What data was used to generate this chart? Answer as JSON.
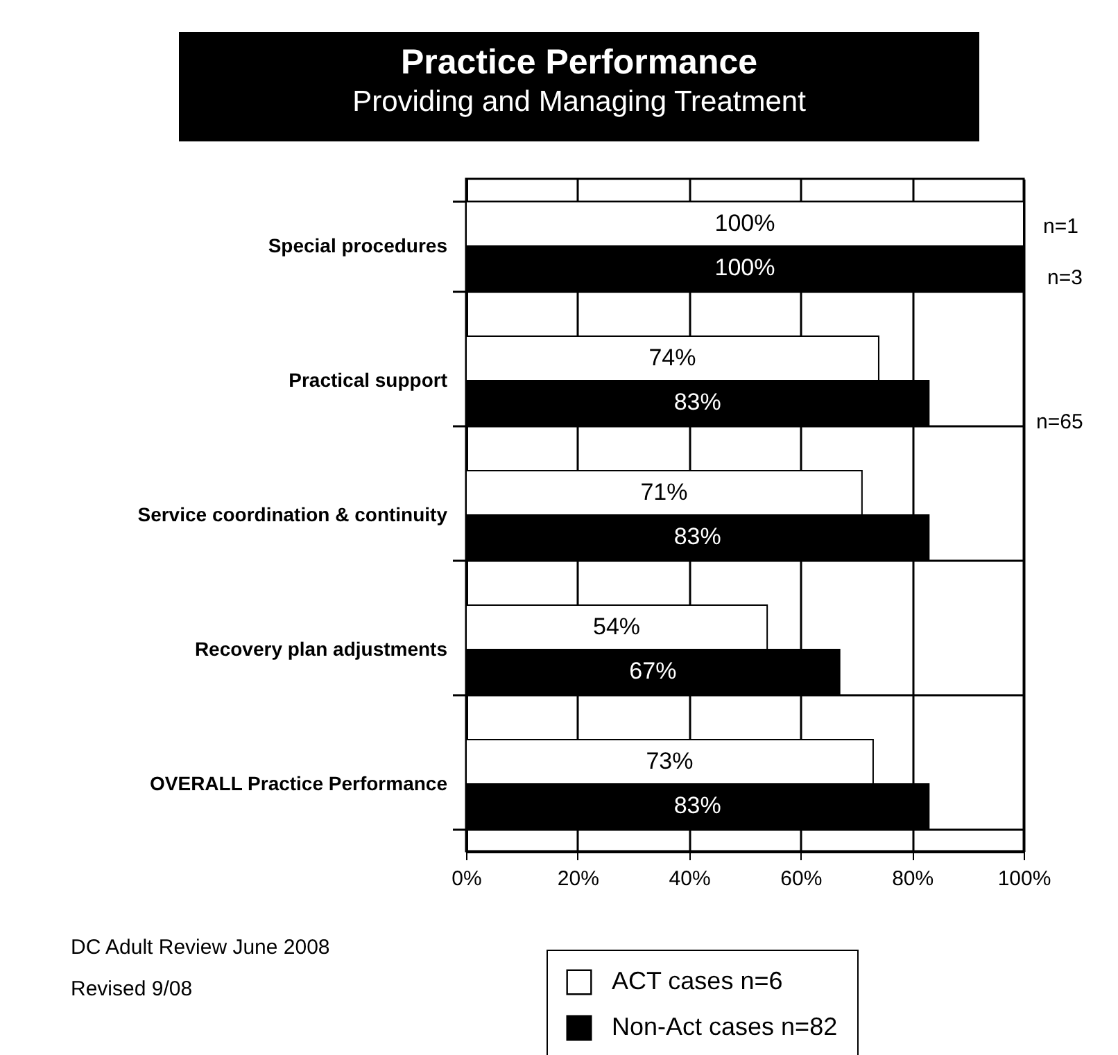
{
  "chart_data": {
    "type": "bar",
    "orientation": "horizontal",
    "title": "Practice Performance",
    "subtitle": "Providing and Managing Treatment",
    "categories": [
      "Special procedures",
      "Practical support",
      "Service coordination & continuity",
      "Recovery plan adjustments",
      "OVERALL Practice Performance"
    ],
    "series": [
      {
        "name": "ACT cases n=6",
        "color": "#ffffff",
        "values": [
          100,
          74,
          71,
          54,
          73
        ],
        "value_labels": [
          "100%",
          "74%",
          "71%",
          "54%",
          "73%"
        ]
      },
      {
        "name": "Non-Act cases n=82",
        "color": "#000000",
        "values": [
          100,
          83,
          83,
          67,
          83
        ],
        "value_labels": [
          "100%",
          "83%",
          "83%",
          "67%",
          "83%"
        ]
      }
    ],
    "xlim": [
      0,
      100
    ],
    "xticks": [
      {
        "value": 0,
        "label": "0%"
      },
      {
        "value": 20,
        "label": "20%"
      },
      {
        "value": 40,
        "label": "40%"
      },
      {
        "value": 60,
        "label": "60%"
      },
      {
        "value": 80,
        "label": "80%"
      },
      {
        "value": 100,
        "label": "100%"
      }
    ],
    "grid": true,
    "legend": "bottom",
    "annotations": [
      "n=1",
      "n=3",
      "n=65",
      "DC Adult Review June 2008",
      "Revised 9/08"
    ]
  }
}
